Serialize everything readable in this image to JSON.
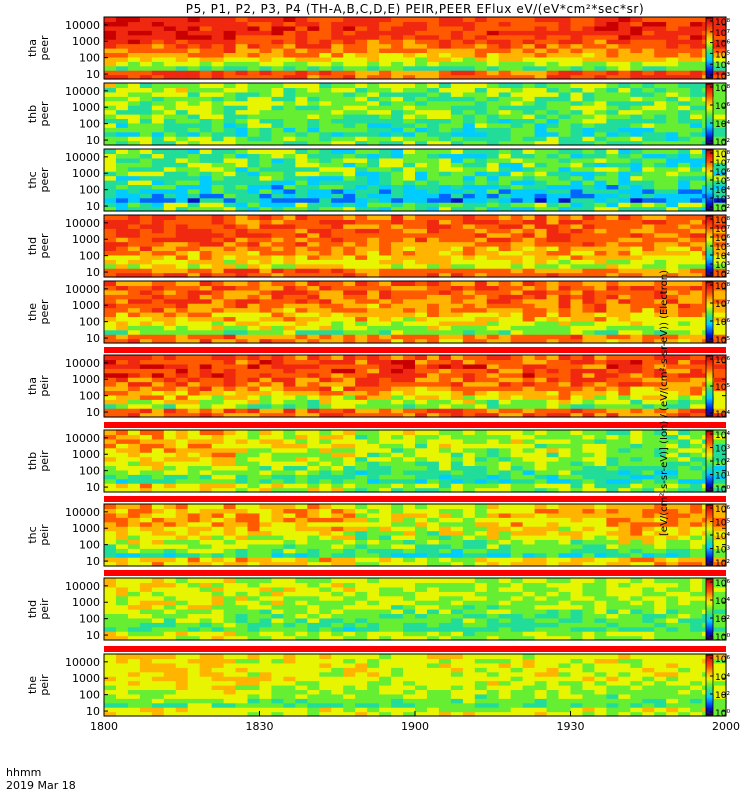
{
  "title": "P5, P1, P2, P3, P4 (TH-A,B,C,D,E) PEIR,PEER EFlux eV/(eV*cm²*sec*sr)",
  "time_axis": {
    "label_line1": "hhmm",
    "label_line2": "2019 Mar 18"
  },
  "colorbar_units": "[eV/(cm²-s-sr-eV)] (Ion) / (eV/(cm²-s-sr-eV)) (Electron)",
  "colors": {
    "rainbow": [
      "#3a005e",
      "#0011c8",
      "#0066ff",
      "#00ccff",
      "#22dd99",
      "#66ee33",
      "#e8f500",
      "#ffb400",
      "#ff5a00",
      "#f02810",
      "#c80000"
    ],
    "fill_gap": "#ff0000",
    "background": "#ffffff"
  },
  "chart_data": {
    "type": "heatmap",
    "x_axis": {
      "ticks": [
        "1800",
        "1830",
        "1900",
        "1930",
        "2000"
      ],
      "range": [
        "1800",
        "2000"
      ]
    },
    "y_axis": {
      "scale": "log",
      "ticks": [
        "10",
        "100",
        "1000",
        "10000"
      ],
      "range_eV": [
        5,
        30000
      ]
    },
    "panels": [
      {
        "name": "tha peer",
        "label1": "tha",
        "label2": "peer",
        "cb_ticks": [
          "10³",
          "10⁴",
          "10⁵",
          "10⁶",
          "10⁷",
          "10⁸"
        ],
        "peak": [
          0.92,
          0.88,
          0.85,
          0.87,
          0.9
        ],
        "low_floor": 0.25,
        "noise": 0.18
      },
      {
        "name": "thb peer",
        "label1": "thb",
        "label2": "peer",
        "cb_ticks": [
          "10²",
          "10⁴",
          "10⁶",
          "10⁸"
        ],
        "peak": [
          0.55,
          0.52,
          0.5,
          0.5,
          0.48
        ],
        "low_floor": 0.35,
        "noise": 0.25
      },
      {
        "name": "thc peer",
        "label1": "thc",
        "label2": "peer",
        "cb_ticks": [
          "10²",
          "10³",
          "10⁴",
          "10⁵",
          "10⁶",
          "10⁷",
          "10⁸"
        ],
        "peak": [
          0.5,
          0.48,
          0.47,
          0.47,
          0.46
        ],
        "low_floor": 0.15,
        "noise": 0.3
      },
      {
        "name": "thd peer",
        "label1": "thd",
        "label2": "peer",
        "cb_ticks": [
          "10²",
          "10³",
          "10⁴",
          "10⁵",
          "10⁶",
          "10⁷",
          "10⁸"
        ],
        "peak": [
          0.85,
          0.82,
          0.8,
          0.8,
          0.78
        ],
        "low_floor": 0.45,
        "noise": 0.2
      },
      {
        "name": "the peer",
        "label1": "the",
        "label2": "peer",
        "cb_ticks": [
          "10⁵",
          "10⁶",
          "10⁷",
          "10⁸"
        ],
        "peak": [
          0.82,
          0.8,
          0.78,
          0.8,
          0.78
        ],
        "low_floor": 0.35,
        "noise": 0.22
      },
      {
        "name": "tha peir",
        "label1": "tha",
        "label2": "peir",
        "cb_ticks": [
          "10⁴",
          "10⁵",
          "10⁶"
        ],
        "peak": [
          0.88,
          0.86,
          0.85,
          0.85,
          0.84
        ],
        "low_floor": 0.3,
        "noise": 0.25
      },
      {
        "name": "thb peir",
        "label1": "thb",
        "label2": "peir",
        "cb_ticks": [
          "10⁰",
          "10¹",
          "10²",
          "10³",
          "10⁴"
        ],
        "peak": [
          0.7,
          0.6,
          0.55,
          0.55,
          0.5
        ],
        "low_floor": 0.3,
        "noise": 0.22
      },
      {
        "name": "thc peir",
        "label1": "thc",
        "label2": "peir",
        "cb_ticks": [
          "10²",
          "10³",
          "10⁴",
          "10⁵",
          "10⁶"
        ],
        "peak": [
          0.72,
          0.7,
          0.6,
          0.68,
          0.72
        ],
        "low_floor": 0.25,
        "noise": 0.22
      },
      {
        "name": "thd peir",
        "label1": "thd",
        "label2": "peir",
        "cb_ticks": [
          "10⁰",
          "10²",
          "10⁴",
          "10⁶"
        ],
        "peak": [
          0.62,
          0.58,
          0.55,
          0.55,
          0.55
        ],
        "low_floor": 0.35,
        "noise": 0.18
      },
      {
        "name": "the peir",
        "label1": "the",
        "label2": "peir",
        "cb_ticks": [
          "10⁰",
          "10²",
          "10⁴",
          "10⁶"
        ],
        "peak": [
          0.66,
          0.62,
          0.6,
          0.6,
          0.6
        ],
        "low_floor": 0.4,
        "noise": 0.16
      }
    ]
  }
}
